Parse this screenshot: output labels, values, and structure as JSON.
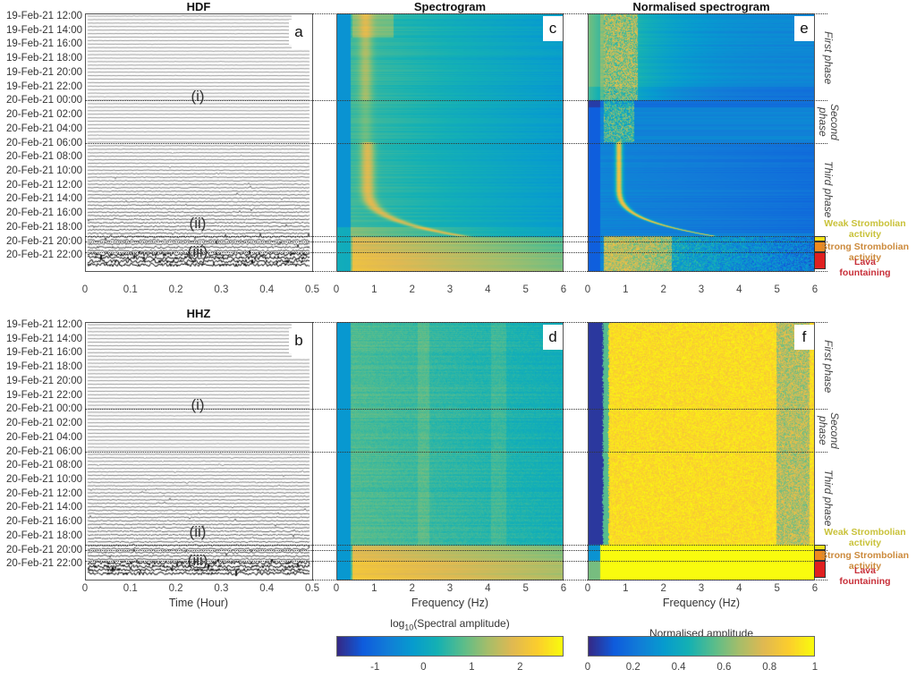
{
  "figure": {
    "time_labels": [
      "19-Feb-21 12:00",
      "19-Feb-21 14:00",
      "19-Feb-21 16:00",
      "19-Feb-21 18:00",
      "19-Feb-21 20:00",
      "19-Feb-21 22:00",
      "20-Feb-21 00:00",
      "20-Feb-21 02:00",
      "20-Feb-21 04:00",
      "20-Feb-21 06:00",
      "20-Feb-21 08:00",
      "20-Feb-21 10:00",
      "20-Feb-21 12:00",
      "20-Feb-21 14:00",
      "20-Feb-21 16:00",
      "20-Feb-21 18:00",
      "20-Feb-21 20:00",
      "20-Feb-21 22:00"
    ],
    "roman_labels": {
      "i": "(i)",
      "ii": "(ii)",
      "iii": "(iii)"
    },
    "phases": [
      {
        "name": "First phase",
        "start": "19-Feb-21 12:00",
        "end": "20-Feb-21 00:00"
      },
      {
        "name": "Second phase",
        "start": "20-Feb-21 00:00",
        "end": "20-Feb-21 06:00"
      },
      {
        "name": "Third phase",
        "start": "20-Feb-21 06:00",
        "end": "20-Feb-21 19:00"
      }
    ],
    "activities": [
      {
        "name": "Weak Strombolian activity",
        "line1": "Weak Strombolian",
        "line2": "activity",
        "color": "#f5e31a",
        "text_color": "#c9c23a"
      },
      {
        "name": "Strong Strombolian activity",
        "line1": "Strong Strombolian",
        "line2": "activity",
        "color": "#ee8a1f",
        "text_color": "#cc8a3c"
      },
      {
        "name": "Lava fountaining",
        "line1": "Lava",
        "line2": "fountaining",
        "color": "#e02020",
        "text_color": "#c8303a"
      }
    ]
  },
  "chart_data": [
    {
      "panel": "a",
      "type": "heatmap",
      "subtype": "helicorder",
      "title": "HDF",
      "xlabel": "",
      "xlim": [
        0,
        0.5
      ],
      "xticks": [
        "0",
        "0.1",
        "0.2",
        "0.3",
        "0.4",
        "0.5"
      ],
      "ylabel": "",
      "yticks_ref": "figure.time_labels",
      "annotations": [
        "(i)",
        "(ii)",
        "(iii)"
      ]
    },
    {
      "panel": "b",
      "type": "heatmap",
      "subtype": "helicorder",
      "title": "HHZ",
      "xlabel": "Time (Hour)",
      "xlim": [
        0,
        0.5
      ],
      "xticks": [
        "0",
        "0.1",
        "0.2",
        "0.3",
        "0.4",
        "0.5"
      ],
      "annotations": [
        "(i)",
        "(ii)",
        "(iii)"
      ]
    },
    {
      "panel": "c",
      "type": "heatmap",
      "title": "Spectrogram",
      "xlabel": "",
      "xlim": [
        0,
        6
      ],
      "xticks": [
        "0",
        "1",
        "2",
        "3",
        "4",
        "5",
        "6"
      ],
      "feature": "spectral peak at ~0.8 Hz, gliding to ~3 Hz near 20-Feb-21 19:00"
    },
    {
      "panel": "d",
      "type": "heatmap",
      "title": "",
      "xlabel": "Frequency (Hz)",
      "xlim": [
        0,
        6
      ],
      "xticks": [
        "0",
        "1",
        "2",
        "3",
        "4",
        "5",
        "6"
      ]
    },
    {
      "panel": "e",
      "type": "heatmap",
      "title": "Normalised spectrogram",
      "xlabel": "",
      "xlim": [
        0,
        6
      ],
      "xticks": [
        "0",
        "1",
        "2",
        "3",
        "4",
        "5",
        "6"
      ]
    },
    {
      "panel": "f",
      "type": "heatmap",
      "title": "",
      "xlabel": "Frequency (Hz)",
      "xlim": [
        0,
        6
      ],
      "xticks": [
        "0",
        "1",
        "2",
        "3",
        "4",
        "5",
        "6"
      ]
    },
    {
      "type": "colorbar",
      "label_prefix": "log",
      "label_sub": "10",
      "label_suffix": "(Spectral amplitude)",
      "range": [
        -1.8,
        2.9
      ],
      "ticks": [
        "-1",
        "0",
        "1",
        "2"
      ],
      "tick_values": [
        -1,
        0,
        1,
        2
      ],
      "colormap": "parula"
    },
    {
      "type": "colorbar",
      "label": "Normalised amplitude",
      "range": [
        0,
        1
      ],
      "ticks": [
        "0",
        "0.2",
        "0.4",
        "0.6",
        "0.8",
        "1"
      ],
      "tick_values": [
        0,
        0.2,
        0.4,
        0.6,
        0.8,
        1
      ],
      "colormap": "parula"
    }
  ]
}
